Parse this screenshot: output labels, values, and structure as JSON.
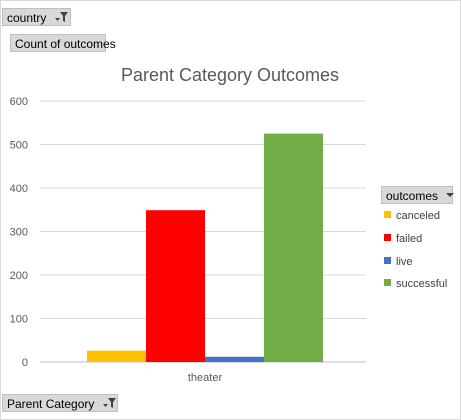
{
  "pivot_fields": {
    "filter_label": "country",
    "values_label": "Count of outcomes",
    "axis_label": "Parent Category",
    "legend_label": "outcomes"
  },
  "icons": {
    "filter": "filter-dropdown-icon",
    "dropdown": "chevron-down-icon"
  },
  "chart_data": {
    "type": "bar",
    "title": "Parent Category Outcomes",
    "xlabel": "",
    "ylabel": "",
    "categories": [
      "theater"
    ],
    "ylim": [
      0,
      600
    ],
    "yticks": [
      0,
      100,
      200,
      300,
      400,
      500,
      600
    ],
    "grid": true,
    "legend_position": "right",
    "series": [
      {
        "name": "canceled",
        "color": "#ffc000",
        "values": [
          26
        ]
      },
      {
        "name": "failed",
        "color": "#ff0000",
        "values": [
          349
        ]
      },
      {
        "name": "live",
        "color": "#4472c4",
        "values": [
          12
        ]
      },
      {
        "name": "successful",
        "color": "#70ad47",
        "values": [
          525
        ]
      }
    ]
  }
}
